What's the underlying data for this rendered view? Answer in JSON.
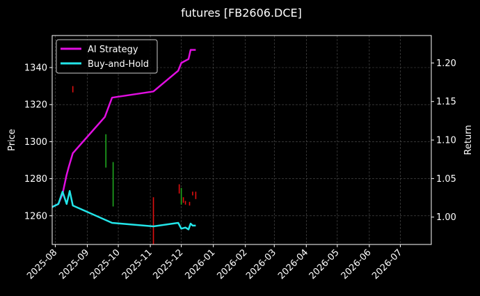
{
  "chart_data": {
    "type": "line",
    "title": "futures [FB2606.DCE]",
    "xlabel": "",
    "ylabel": "Price",
    "y2label": "Return",
    "x_range": [
      "2025-07-29",
      "2026-07-31"
    ],
    "x_ticks": [
      "2025-08",
      "2025-09",
      "2025-10",
      "2025-11",
      "2025-12",
      "2026-01",
      "2026-02",
      "2026-03",
      "2026-04",
      "2026-05",
      "2026-06",
      "2026-07"
    ],
    "ylim": [
      1244.5,
      1357.3
    ],
    "y_ticks": [
      1260,
      1280,
      1300,
      1320,
      1340
    ],
    "y2lim": [
      0.9645,
      1.2356
    ],
    "y2_ticks": [
      "1.00",
      "1.05",
      "1.10",
      "1.15",
      "1.20"
    ],
    "grid": true,
    "legend_position": "top-left",
    "colors": {
      "background": "#000000",
      "ai_strategy": "#e10ee1",
      "buy_and_hold": "#23e6ea",
      "up_candle": "#1fa81f",
      "down_candle": "#e01010",
      "grid": "#555555"
    },
    "series": [
      {
        "name": "AI Strategy",
        "axis": "return",
        "points": [
          [
            "2025-07-29",
            1.013
          ],
          [
            "2025-08-04",
            1.017
          ],
          [
            "2025-08-08",
            1.03
          ],
          [
            "2025-08-12",
            1.055
          ],
          [
            "2025-08-14",
            1.065
          ],
          [
            "2025-08-18",
            1.083
          ],
          [
            "2025-09-18",
            1.13
          ],
          [
            "2025-09-25",
            1.155
          ],
          [
            "2025-11-04",
            1.163
          ],
          [
            "2025-11-28",
            1.19
          ],
          [
            "2025-12-01",
            1.2
          ],
          [
            "2025-12-05",
            1.203
          ],
          [
            "2025-12-08",
            1.205
          ],
          [
            "2025-12-10",
            1.217
          ],
          [
            "2025-12-13",
            1.217
          ],
          [
            "2025-12-15",
            1.217
          ]
        ]
      },
      {
        "name": "Buy-and-Hold",
        "axis": "return",
        "points": [
          [
            "2025-07-29",
            1.013
          ],
          [
            "2025-08-04",
            1.017
          ],
          [
            "2025-08-08",
            1.033
          ],
          [
            "2025-08-12",
            1.017
          ],
          [
            "2025-08-15",
            1.034
          ],
          [
            "2025-08-18",
            1.015
          ],
          [
            "2025-09-25",
            0.9925
          ],
          [
            "2025-11-04",
            0.988
          ],
          [
            "2025-11-28",
            0.9925
          ],
          [
            "2025-12-01",
            0.985
          ],
          [
            "2025-12-05",
            0.9865
          ],
          [
            "2025-12-08",
            0.984
          ],
          [
            "2025-12-10",
            0.9915
          ],
          [
            "2025-12-12",
            0.989
          ],
          [
            "2025-12-15",
            0.989
          ]
        ]
      }
    ],
    "candles": [
      {
        "date": "2025-08-18",
        "low": 1326.6,
        "high": 1330,
        "dir": "down"
      },
      {
        "date": "2025-09-19",
        "low": 1286,
        "high": 1304,
        "dir": "up"
      },
      {
        "date": "2025-09-26",
        "low": 1265,
        "high": 1289,
        "dir": "up"
      },
      {
        "date": "2025-11-04",
        "low": 1244.5,
        "high": 1270,
        "dir": "down"
      },
      {
        "date": "2025-11-29",
        "low": 1272,
        "high": 1277,
        "dir": "down"
      },
      {
        "date": "2025-12-01",
        "low": 1266,
        "high": 1275,
        "dir": "up"
      },
      {
        "date": "2025-12-03",
        "low": 1267,
        "high": 1270,
        "dir": "down"
      },
      {
        "date": "2025-12-05",
        "low": 1266,
        "high": 1268,
        "dir": "down"
      },
      {
        "date": "2025-12-09",
        "low": 1265.5,
        "high": 1267.5,
        "dir": "down"
      },
      {
        "date": "2025-12-12",
        "low": 1271,
        "high": 1273,
        "dir": "down"
      },
      {
        "date": "2025-12-15",
        "low": 1269,
        "high": 1273,
        "dir": "down"
      }
    ]
  }
}
